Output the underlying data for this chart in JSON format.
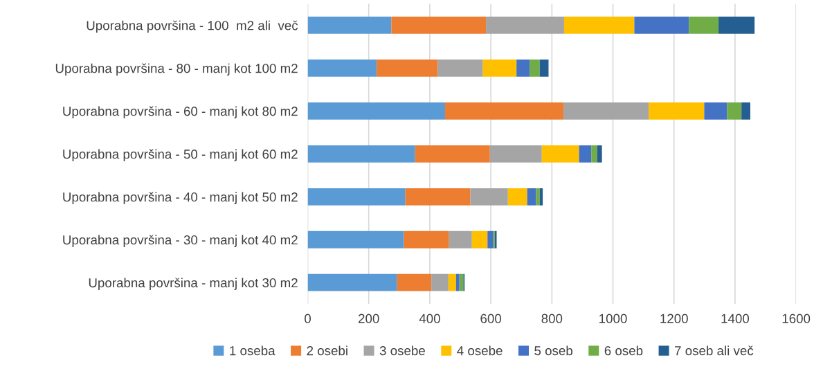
{
  "chart_data": {
    "type": "bar",
    "orientation": "horizontal",
    "stacked": true,
    "categories": [
      "Uporabna površina - 100  m2 ali  več",
      "Uporabna površina - 80 - manj kot 100 m2",
      "Uporabna površina - 60 - manj kot 80 m2",
      "Uporabna površina - 50 - manj kot 60 m2",
      "Uporabna površina - 40 - manj kot 50 m2",
      "Uporabna površina - 30 - manj kot 40 m2",
      "Uporabna površina - manj kot 30 m2"
    ],
    "series": [
      {
        "name": "1 oseba",
        "color": "#5b9bd5",
        "values": [
          274,
          226,
          450,
          352,
          320,
          315,
          293
        ]
      },
      {
        "name": "2 osebi",
        "color": "#ed7d31",
        "values": [
          310,
          200,
          388,
          245,
          213,
          148,
          112
        ]
      },
      {
        "name": "3 osebe",
        "color": "#a5a5a5",
        "values": [
          256,
          148,
          279,
          170,
          123,
          75,
          56
        ]
      },
      {
        "name": "4 osebe",
        "color": "#ffc000",
        "values": [
          230,
          110,
          182,
          122,
          63,
          51,
          25
        ]
      },
      {
        "name": "5 oseb",
        "color": "#4472c4",
        "values": [
          179,
          43,
          75,
          40,
          29,
          19,
          11
        ]
      },
      {
        "name": "6 oseb",
        "color": "#70ad47",
        "values": [
          97,
          33,
          47,
          19,
          12,
          5,
          13
        ]
      },
      {
        "name": "7 oseb ali več",
        "color": "#255e91",
        "values": [
          118,
          29,
          29,
          16,
          10,
          6,
          4
        ]
      }
    ],
    "xlim": [
      0,
      1600
    ],
    "xticks": [
      0,
      200,
      400,
      600,
      800,
      1000,
      1200,
      1400,
      1600
    ],
    "grid": "x",
    "legend": "bottom"
  }
}
